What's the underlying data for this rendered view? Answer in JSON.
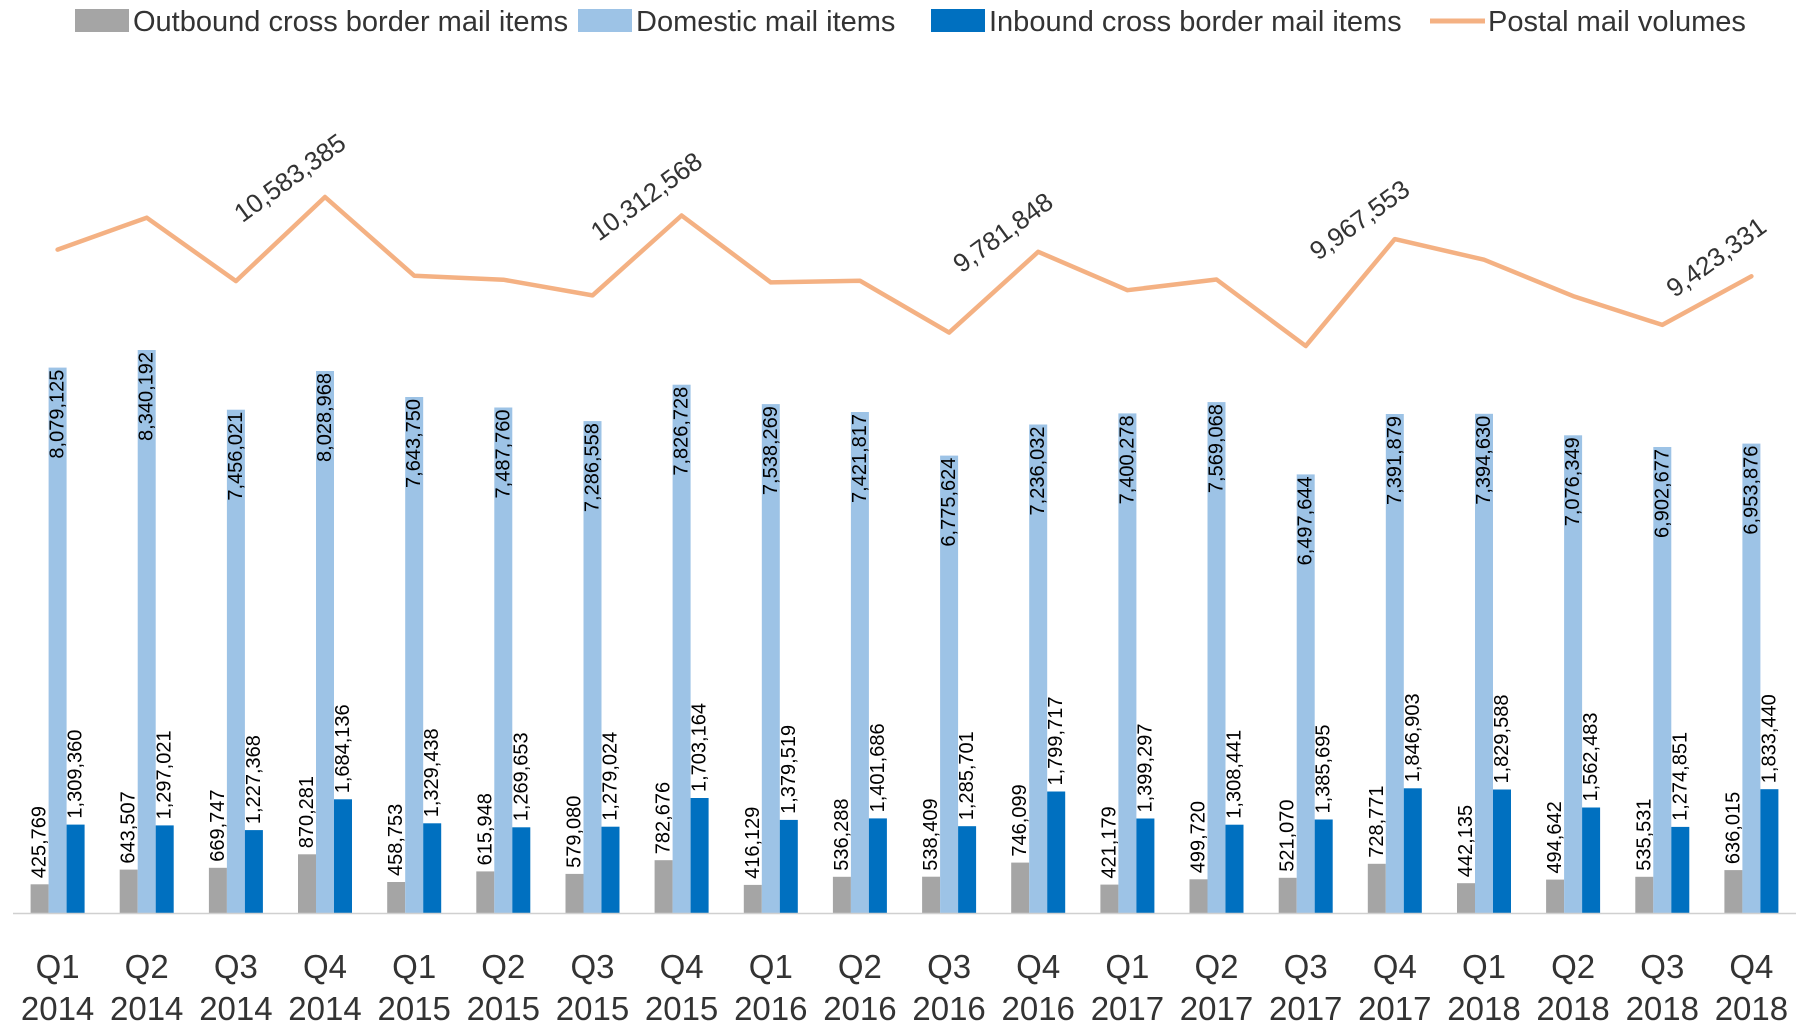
{
  "chart_data": {
    "type": "bar",
    "categories": [
      [
        "Q1",
        "2014"
      ],
      [
        "Q2",
        "2014"
      ],
      [
        "Q3",
        "2014"
      ],
      [
        "Q4",
        "2014"
      ],
      [
        "Q1",
        "2015"
      ],
      [
        "Q2",
        "2015"
      ],
      [
        "Q3",
        "2015"
      ],
      [
        "Q4",
        "2015"
      ],
      [
        "Q1",
        "2016"
      ],
      [
        "Q2",
        "2016"
      ],
      [
        "Q3",
        "2016"
      ],
      [
        "Q4",
        "2016"
      ],
      [
        "Q1",
        "2017"
      ],
      [
        "Q2",
        "2017"
      ],
      [
        "Q3",
        "2017"
      ],
      [
        "Q4",
        "2017"
      ],
      [
        "Q1",
        "2018"
      ],
      [
        "Q2",
        "2018"
      ],
      [
        "Q3",
        "2018"
      ],
      [
        "Q4",
        "2018"
      ]
    ],
    "series": [
      {
        "name": "Outbound cross border mail items",
        "kind": "bar",
        "color": "#A5A5A5",
        "values": [
          425769,
          643507,
          669747,
          870281,
          458753,
          615948,
          579080,
          782676,
          416129,
          536288,
          538409,
          746099,
          421179,
          499720,
          521070,
          728771,
          442135,
          494642,
          535531,
          636015
        ],
        "labels": [
          "425,769",
          "643,507",
          "669,747",
          "870,281",
          "458,753",
          "615,948",
          "579,080",
          "782,676",
          "416,129",
          "536,288",
          "538,409",
          "746,099",
          "421,179",
          "499,720",
          "521,070",
          "728,771",
          "442,135",
          "494,642",
          "535,531",
          "636,015"
        ]
      },
      {
        "name": "Domestic mail items",
        "kind": "bar",
        "color": "#9DC3E6",
        "values": [
          8079125,
          8340192,
          7456021,
          8028968,
          7643750,
          7487760,
          7286558,
          7826728,
          7538269,
          7421817,
          6775624,
          7236032,
          7400278,
          7569068,
          6497644,
          7391879,
          7394630,
          7076349,
          6902677,
          6953876
        ],
        "labels": [
          "8,079,125",
          "8,340,192",
          "7,456,021",
          "8,028,968",
          "7,643,750",
          "7,487,760",
          "7,286,558",
          "7,826,728",
          "7,538,269",
          "7,421,817",
          "6,775,624",
          "7,236,032",
          "7,400,278",
          "7,569,068",
          "6,497,644",
          "7,391,879",
          "7,394,630",
          "7,076,349",
          "6,902,677",
          "6,953,876"
        ]
      },
      {
        "name": "Inbound cross border mail items",
        "kind": "bar",
        "color": "#0070C0",
        "values": [
          1309360,
          1297021,
          1227368,
          1684136,
          1329438,
          1269653,
          1279024,
          1703164,
          1379519,
          1401686,
          1285701,
          1799717,
          1399297,
          1308441,
          1385695,
          1846903,
          1829588,
          1562483,
          1274851,
          1833440
        ],
        "labels": [
          "1,309,360",
          "1,297,021",
          "1,227,368",
          "1,684,136",
          "1,329,438",
          "1,269,653",
          "1,279,024",
          "1,703,164",
          "1,379,519",
          "1,401,686",
          "1,285,701",
          "1,799,717",
          "1,399,297",
          "1,308,441",
          "1,385,695",
          "1,846,903",
          "1,829,588",
          "1,562,483",
          "1,274,851",
          "1,833,440"
        ]
      },
      {
        "name": "Postal mail volumes",
        "kind": "line",
        "color": "#F4B183",
        "values": [
          9814254,
          10280720,
          9353136,
          10583385,
          9431941,
          9373361,
          9144662,
          10312568,
          9333917,
          9359791,
          8599734,
          9781848,
          9220754,
          9377229,
          8404409,
          9967553,
          9666353,
          9133474,
          8713059,
          9423331
        ],
        "labels": [
          "",
          "",
          "",
          "10,583,385",
          "",
          "",
          "",
          "10,312,568",
          "",
          "",
          "",
          "9,781,848",
          "",
          "",
          "",
          "9,967,553",
          "",
          "",
          "",
          "9,423,331"
        ]
      }
    ],
    "legend_position": "top",
    "grid": false,
    "ylim_bars": [
      0,
      8340192
    ],
    "ylim_line": [
      8404409,
      10583385
    ]
  }
}
